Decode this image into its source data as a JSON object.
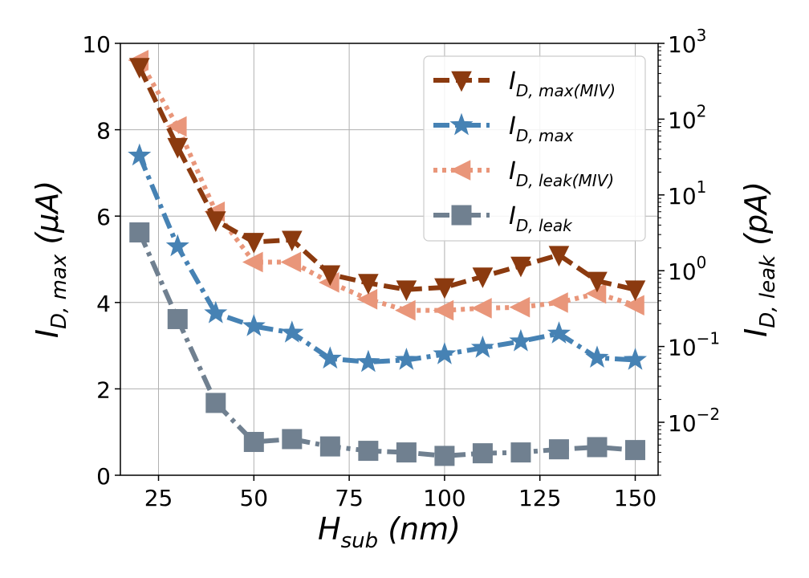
{
  "chart_data": {
    "type": "line",
    "x": [
      20,
      30,
      40,
      50,
      60,
      70,
      80,
      90,
      100,
      110,
      120,
      130,
      140,
      150
    ],
    "xlim": [
      15,
      156
    ],
    "xticks": [
      25,
      50,
      75,
      100,
      125,
      150
    ],
    "xlabel": {
      "main": "H",
      "sub": "sub",
      "rest": " (nm)"
    },
    "ylim_left": [
      0,
      10
    ],
    "yticks_left": [
      0,
      2,
      4,
      6,
      8,
      10
    ],
    "ylabel_left": {
      "main": "I",
      "sub": "D, max",
      "rest": " (μA)"
    },
    "yscale_right": "log",
    "ylim_right": [
      0.002,
      1000
    ],
    "yticks_right": [
      0.01,
      0.1,
      1,
      10,
      100,
      1000
    ],
    "yticks_right_labels": [
      {
        "base": "10",
        "exp": "−2"
      },
      {
        "base": "10",
        "exp": "−1"
      },
      {
        "base": "10",
        "exp": "0"
      },
      {
        "base": "10",
        "exp": "1"
      },
      {
        "base": "10",
        "exp": "2"
      },
      {
        "base": "10",
        "exp": "3"
      }
    ],
    "ylabel_right": {
      "main": "I",
      "sub": "D, leak",
      "rest": " (pA)"
    },
    "grid": true,
    "legend_position": "top-right",
    "series": [
      {
        "key": "id-max-miv",
        "legend": {
          "main": "I",
          "sub": "D, max(MIV)"
        },
        "axis": "left",
        "color": "#8b3a0f",
        "marker": "triangle-down",
        "dash": "dashed",
        "values": [
          9.45,
          7.6,
          5.9,
          5.4,
          5.45,
          4.65,
          4.45,
          4.3,
          4.35,
          4.6,
          4.85,
          5.1,
          4.5,
          4.3
        ]
      },
      {
        "key": "id-max",
        "legend": {
          "main": "I",
          "sub": "D, max"
        },
        "axis": "left",
        "color": "#4682b4",
        "marker": "star",
        "dash": "dashdot",
        "values": [
          7.4,
          5.3,
          3.75,
          3.45,
          3.3,
          2.7,
          2.62,
          2.67,
          2.8,
          2.95,
          3.1,
          3.28,
          2.72,
          2.67
        ]
      },
      {
        "key": "id-leak-miv",
        "legend": {
          "main": "I",
          "sub": "D, leak(MIV)"
        },
        "axis": "right",
        "color": "#e9967a",
        "marker": "triangle-left",
        "dash": "dotted",
        "values": [
          600,
          80,
          6,
          1.3,
          1.3,
          0.7,
          0.42,
          0.3,
          0.3,
          0.32,
          0.33,
          0.38,
          0.5,
          0.35
        ]
      },
      {
        "key": "id-leak",
        "legend": {
          "main": "I",
          "sub": "D, leak"
        },
        "axis": "right",
        "color": "#708090",
        "marker": "square",
        "dash": "dashdot",
        "values": [
          3.2,
          0.23,
          0.018,
          0.0055,
          0.006,
          0.0048,
          0.0042,
          0.004,
          0.0036,
          0.0039,
          0.004,
          0.0044,
          0.0047,
          0.0043
        ]
      }
    ]
  }
}
